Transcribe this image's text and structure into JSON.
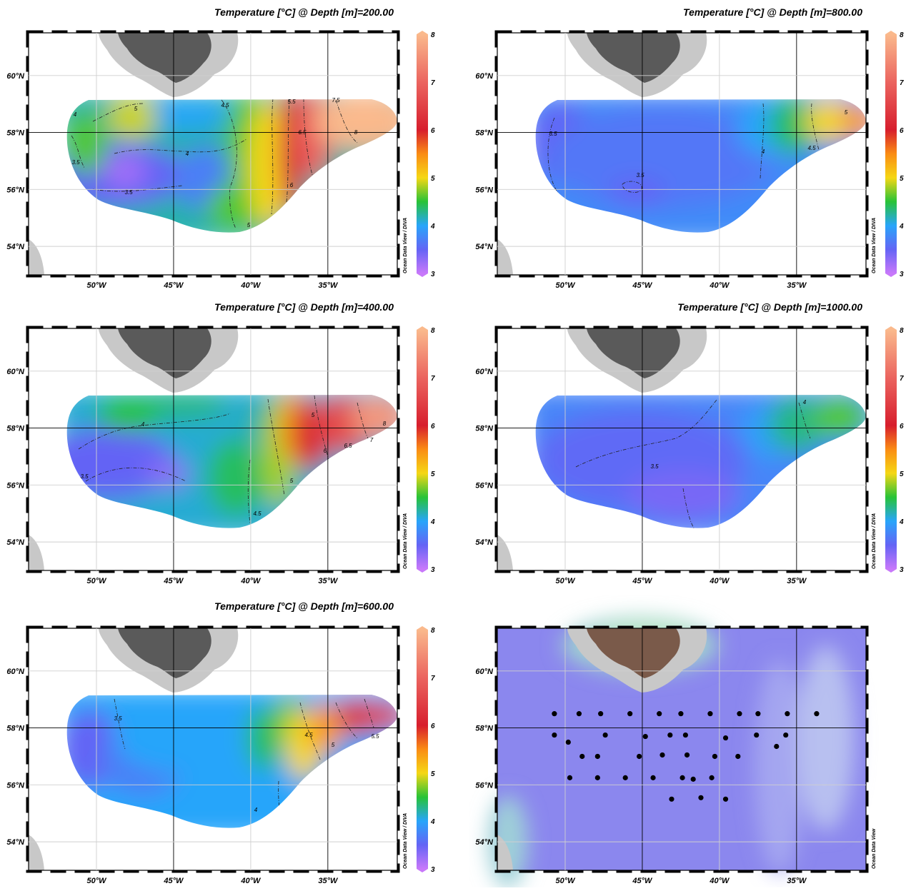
{
  "figure": {
    "colorbar": {
      "min": 3,
      "max": 8,
      "ticks": [
        "3",
        "4",
        "5",
        "6",
        "7",
        "8"
      ]
    },
    "credit_diva": "Ocean Data View / DIVA",
    "credit_odv": "Ocean Data View",
    "lon_ticks": [
      {
        "lon": -50,
        "label": "50°W"
      },
      {
        "lon": -45,
        "label": "45°W"
      },
      {
        "lon": -40,
        "label": "40°W"
      },
      {
        "lon": -35,
        "label": "35°W"
      }
    ],
    "lat_ticks": [
      {
        "lat": 60,
        "label": "60°N"
      },
      {
        "lat": 58,
        "label": "58°N"
      },
      {
        "lat": 56,
        "label": "56°N"
      },
      {
        "lat": 54,
        "label": "54°N"
      }
    ]
  },
  "chart_data": [
    {
      "type": "heatmap",
      "title": "Temperature [°C] @ Depth [m]=200.00",
      "xlim": [
        -54.4,
        -30.5
      ],
      "ylim": [
        53,
        61.5
      ],
      "zlim": [
        3,
        8
      ],
      "contour_labels": [
        "4",
        "5",
        "4.5",
        "5.5",
        "7.5",
        "6.5",
        "8",
        "4",
        "3.5",
        "3.5",
        "6",
        "5"
      ]
    },
    {
      "type": "heatmap",
      "title": "Temperature [°C] @ Depth [m]=800.00",
      "xlim": [
        -54.4,
        -30.5
      ],
      "ylim": [
        53,
        61.5
      ],
      "zlim": [
        3,
        8
      ],
      "contour_labels": [
        "3.5",
        "3.5",
        "4",
        "4.5",
        "5"
      ]
    },
    {
      "type": "heatmap",
      "title": "Temperature [°C] @ Depth [m]=400.00",
      "xlim": [
        -54.4,
        -30.5
      ],
      "ylim": [
        53,
        61.5
      ],
      "zlim": [
        3,
        8
      ],
      "contour_labels": [
        "4",
        "3.5",
        "5",
        "6",
        "6.5",
        "7",
        "8",
        "5",
        "4.5"
      ]
    },
    {
      "type": "heatmap",
      "title": "Temperature [°C] @ Depth [m]=1000.00",
      "xlim": [
        -54.4,
        -30.5
      ],
      "ylim": [
        53,
        61.5
      ],
      "zlim": [
        3,
        8
      ],
      "contour_labels": [
        "3.5",
        "4"
      ]
    },
    {
      "type": "heatmap",
      "title": "Temperature [°C] @ Depth [m]=600.00",
      "xlim": [
        -54.4,
        -30.5
      ],
      "ylim": [
        53,
        61.5
      ],
      "zlim": [
        3,
        8
      ],
      "contour_labels": [
        "3.5",
        "4.5",
        "5",
        "5.5",
        "4"
      ]
    },
    {
      "type": "scatter",
      "title": "",
      "xlim": [
        -54.4,
        -30.5
      ],
      "ylim": [
        53,
        61.5
      ],
      "stations": [
        [
          -50.7,
          58.5
        ],
        [
          -49.1,
          58.5
        ],
        [
          -47.7,
          58.5
        ],
        [
          -45.8,
          58.5
        ],
        [
          -43.9,
          58.5
        ],
        [
          -42.5,
          58.5
        ],
        [
          -40.6,
          58.5
        ],
        [
          -38.7,
          58.5
        ],
        [
          -37.5,
          58.5
        ],
        [
          -35.6,
          58.5
        ],
        [
          -33.7,
          58.5
        ],
        [
          -50.7,
          57.75
        ],
        [
          -47.4,
          57.75
        ],
        [
          -44.8,
          57.7
        ],
        [
          -43.2,
          57.75
        ],
        [
          -42.2,
          57.75
        ],
        [
          -39.6,
          57.65
        ],
        [
          -37.6,
          57.75
        ],
        [
          -35.7,
          57.75
        ],
        [
          -49.8,
          57.5
        ],
        [
          -36.3,
          57.35
        ],
        [
          -48.9,
          57.0
        ],
        [
          -47.9,
          57.0
        ],
        [
          -45.2,
          57.0
        ],
        [
          -43.7,
          57.05
        ],
        [
          -42.1,
          57.05
        ],
        [
          -40.3,
          57.0
        ],
        [
          -38.8,
          57.0
        ],
        [
          -49.7,
          56.25
        ],
        [
          -47.9,
          56.25
        ],
        [
          -46.1,
          56.25
        ],
        [
          -44.3,
          56.25
        ],
        [
          -42.4,
          56.25
        ],
        [
          -41.7,
          56.2
        ],
        [
          -40.5,
          56.25
        ],
        [
          -43.1,
          55.5
        ],
        [
          -41.2,
          55.55
        ],
        [
          -39.6,
          55.5
        ]
      ]
    }
  ]
}
